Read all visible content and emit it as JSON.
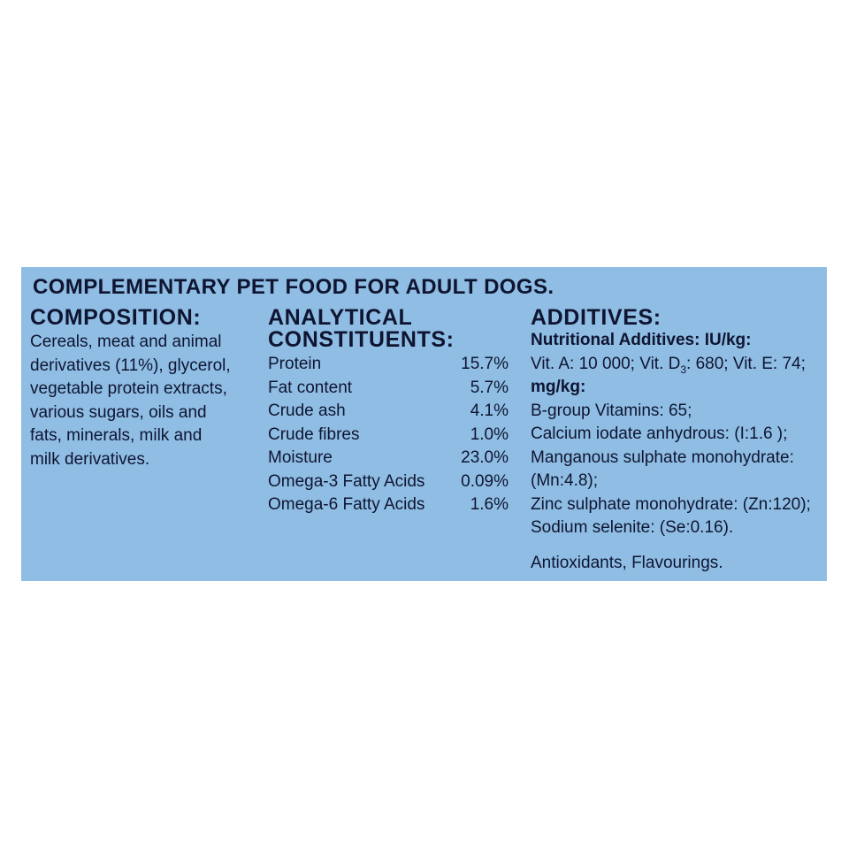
{
  "title": "COMPLEMENTARY PET FOOD FOR ADULT DOGS.",
  "composition": {
    "heading": "COMPOSITION:",
    "lines": [
      "Cereals, meat and animal",
      "derivatives (11%), glycerol,",
      "vegetable protein extracts,",
      "various sugars, oils and",
      "fats, minerals, milk and",
      "milk derivatives."
    ]
  },
  "analytical": {
    "heading_line1": "ANALYTICAL",
    "heading_line2": "CONSTITUENTS:",
    "rows": [
      {
        "name": "Protein",
        "value": "15.7%"
      },
      {
        "name": "Fat content",
        "value": "5.7%"
      },
      {
        "name": "Crude ash",
        "value": "4.1%"
      },
      {
        "name": "Crude fibres",
        "value": "1.0%"
      },
      {
        "name": "Moisture",
        "value": "23.0%"
      },
      {
        "name": "Omega-3 Fatty Acids",
        "value": "0.09%"
      },
      {
        "name": "Omega-6 Fatty Acids",
        "value": "1.6%"
      }
    ]
  },
  "additives": {
    "heading": "ADDITIVES:",
    "nutritional_label": "Nutritional Additives: IU/kg:",
    "vitamins_part1": "Vit. A: 10 000; Vit. D",
    "vitamins_sub": "3",
    "vitamins_part2": ": 680; Vit. E: 74;",
    "mgkg_label": "mg/kg:",
    "lines": [
      "B-group Vitamins: 65;",
      "Calcium iodate anhydrous: (I:1.6  );",
      "Manganous sulphate monohydrate:",
      "(Mn:4.8);",
      "Zinc sulphate monohydrate: (Zn:120);",
      "Sodium selenite: (Se:0.16)."
    ],
    "footer": "Antioxidants, Flavourings."
  },
  "colors": {
    "panel_background": "#8fbde4",
    "text": "#0f1530",
    "page_background": "#ffffff"
  }
}
